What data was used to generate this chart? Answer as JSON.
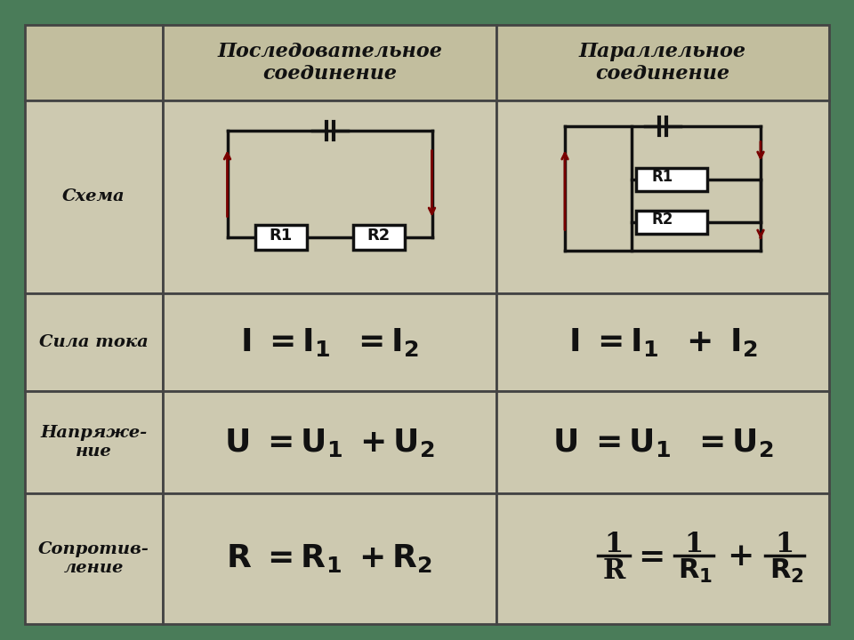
{
  "bg_color": "#4a7c59",
  "table_bg": "#cdc9b0",
  "header_bg": "#c2be9e",
  "border_color": "#444444",
  "text_color": "#111111",
  "col1_label": "Последовательное\nсоединение",
  "col2_label": "Параллельное\nсоединение",
  "row_labels": [
    "Схема",
    "Сила тока",
    "Напряже-\nние",
    "Сопротив-\nление"
  ],
  "fig_width": 9.6,
  "fig_height": 7.2,
  "dpi": 100,
  "circuit_color": "#111111",
  "arrow_color": "#7a0000",
  "resistor_fill": "#ffffff"
}
